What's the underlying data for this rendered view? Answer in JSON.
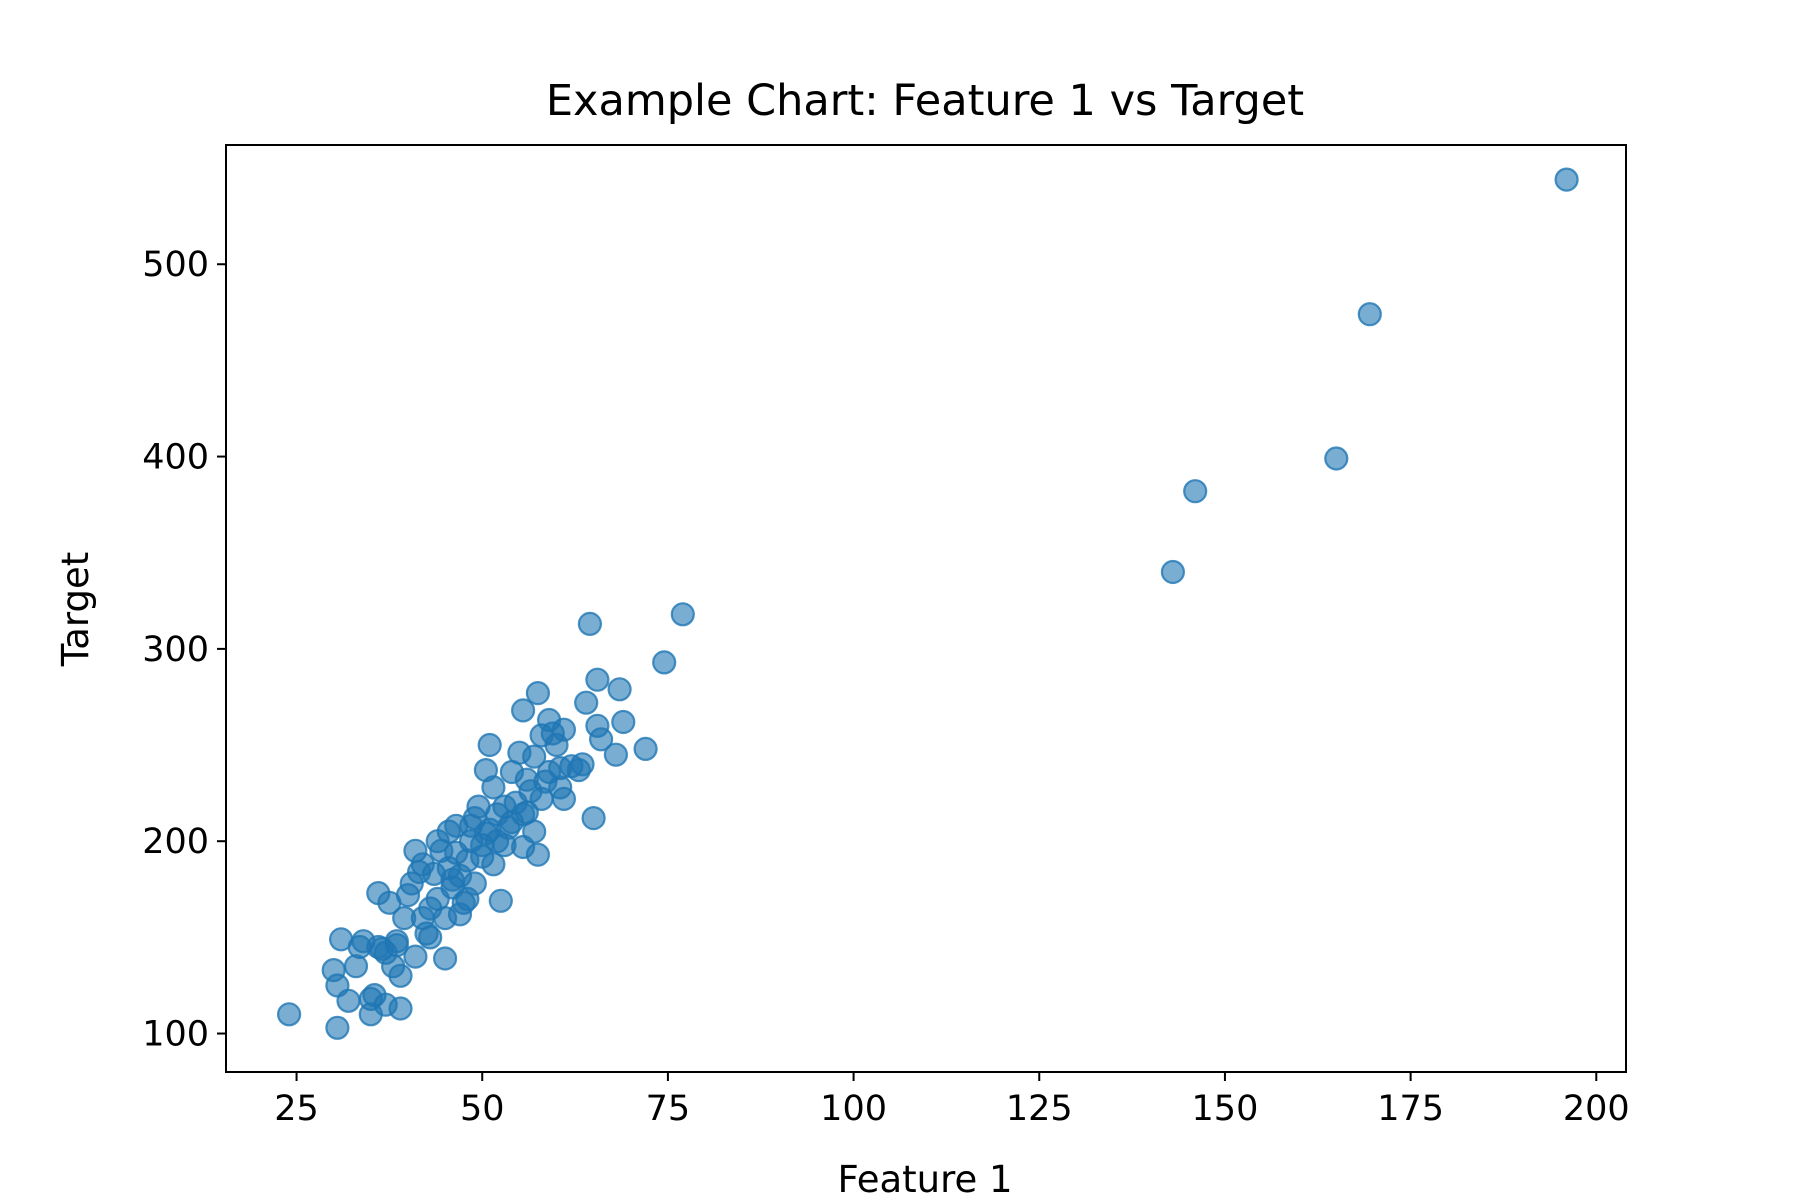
{
  "chart_data": {
    "type": "scatter",
    "title": "Example Chart: Feature 1 vs Target",
    "xlabel": "Feature 1",
    "ylabel": "Target",
    "xlim": [
      15.5,
      204
    ],
    "ylim": [
      80,
      562
    ],
    "xticks": [
      25,
      50,
      75,
      100,
      125,
      150,
      175,
      200
    ],
    "yticks": [
      100,
      200,
      300,
      400,
      500
    ],
    "xtick_labels": [
      "25",
      "50",
      "75",
      "100",
      "125",
      "150",
      "175",
      "200"
    ],
    "ytick_labels": [
      "100",
      "200",
      "300",
      "400",
      "500"
    ],
    "grid": false,
    "marker_color": "#1f77b4",
    "marker_alpha": 0.6,
    "series": [
      {
        "x": [
          24.0,
          30.5,
          30.0,
          31.0,
          33.5,
          34.0,
          35.0,
          35.5,
          36.0,
          36.5,
          37.0,
          37.5,
          38.0,
          38.5,
          39.0,
          39.5,
          40.0,
          40.5,
          41.0,
          41.5,
          42.0,
          42.5,
          43.0,
          43.5,
          44.0,
          44.5,
          45.0,
          45.5,
          46.0,
          46.5,
          47.0,
          47.5,
          48.0,
          48.5,
          49.0,
          49.5,
          50.0,
          50.5,
          51.0,
          51.5,
          52.0,
          52.5,
          53.0,
          53.5,
          54.0,
          54.5,
          55.0,
          55.5,
          56.0,
          56.5,
          57.0,
          57.5,
          58.0,
          58.5,
          59.0,
          59.5,
          60.0,
          60.5,
          61.0,
          62.0,
          63.0,
          64.0,
          64.5,
          65.0,
          65.5,
          66.0,
          68.0,
          68.5,
          69.0,
          72.0,
          74.5,
          77.0,
          65.5,
          57.5,
          55.5,
          51.0,
          45.0,
          38.5,
          36.0,
          32.0,
          30.5,
          42.0,
          44.0,
          46.0,
          48.0,
          50.0,
          52.0,
          54.0,
          56.0,
          58.0,
          47.0,
          49.0,
          43.0,
          41.0,
          53.0,
          57.0,
          59.0,
          61.0,
          39.0,
          37.0,
          35.0,
          33.0,
          45.5,
          50.5,
          55.5,
          60.5,
          63.5,
          46.5,
          48.5,
          51.5,
          143.0,
          146.0,
          165.0,
          169.5,
          196.0
        ],
        "y": [
          110,
          103,
          133,
          149,
          145,
          148,
          110,
          120,
          173,
          144,
          115,
          168,
          135,
          148,
          113,
          160,
          172,
          178,
          195,
          184,
          188,
          152,
          165,
          183,
          200,
          195,
          139,
          205,
          176,
          208,
          182,
          168,
          170,
          200,
          212,
          218,
          198,
          237,
          250,
          228,
          214,
          169,
          218,
          207,
          236,
          220,
          246,
          268,
          232,
          226,
          244,
          277,
          255,
          231,
          263,
          256,
          250,
          228,
          258,
          239,
          237,
          272,
          313,
          212,
          284,
          253,
          245,
          279,
          262,
          248,
          293,
          318,
          260,
          193,
          214,
          206,
          160,
          146,
          145,
          117,
          125,
          160,
          170,
          180,
          190,
          192,
          200,
          210,
          215,
          222,
          162,
          178,
          150,
          140,
          198,
          205,
          236,
          222,
          130,
          142,
          118,
          135,
          186,
          204,
          197,
          238,
          240,
          194,
          208,
          188,
          340,
          382,
          399,
          474,
          544
        ]
      }
    ]
  }
}
